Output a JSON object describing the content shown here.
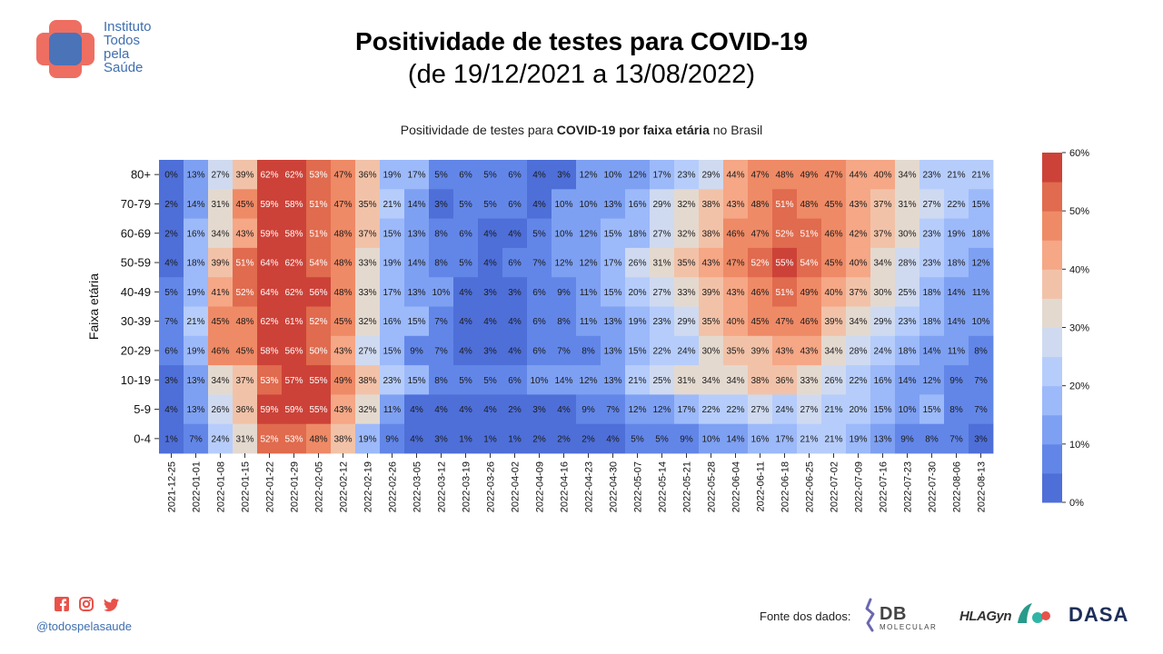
{
  "header": {
    "brand_lines": [
      "Instituto",
      "Todos",
      "pela",
      "Saúde"
    ],
    "title": "Positividade de testes para COVID-19",
    "subtitle": "(de 19/12/2021 a 13/08/2022)"
  },
  "chart_data": {
    "type": "heatmap",
    "title_parts": [
      {
        "text": "Positividade de testes para ",
        "bold": false
      },
      {
        "text": "COVID-19",
        "bold": true
      },
      {
        "text": " ",
        "bold": false
      },
      {
        "text": "por faixa etária",
        "bold": true
      },
      {
        "text": " no Brasil",
        "bold": false
      }
    ],
    "ylabel": "Faixa etária",
    "xlabel": "",
    "x": [
      "2021-12-25",
      "2022-01-01",
      "2022-01-08",
      "2022-01-15",
      "2022-01-22",
      "2022-01-29",
      "2022-02-05",
      "2022-02-12",
      "2022-02-19",
      "2022-02-26",
      "2022-03-05",
      "2022-03-12",
      "2022-03-19",
      "2022-03-26",
      "2022-04-02",
      "2022-04-09",
      "2022-04-16",
      "2022-04-23",
      "2022-04-30",
      "2022-05-07",
      "2022-05-14",
      "2022-05-21",
      "2022-05-28",
      "2022-06-04",
      "2022-06-11",
      "2022-06-18",
      "2022-06-25",
      "2022-07-02",
      "2022-07-09",
      "2022-07-16",
      "2022-07-23",
      "2022-07-30",
      "2022-08-06",
      "2022-08-13"
    ],
    "y": [
      "80+",
      "70-79",
      "60-69",
      "50-59",
      "40-49",
      "30-39",
      "20-29",
      "10-19",
      "5-9",
      "0-4"
    ],
    "values": [
      [
        0,
        13,
        27,
        39,
        62,
        62,
        53,
        47,
        36,
        19,
        17,
        5,
        6,
        5,
        6,
        4,
        3,
        12,
        10,
        12,
        17,
        23,
        29,
        44,
        47,
        48,
        49,
        47,
        44,
        40,
        34,
        23,
        21,
        21
      ],
      [
        2,
        14,
        31,
        45,
        59,
        58,
        51,
        47,
        35,
        21,
        14,
        3,
        5,
        5,
        6,
        4,
        10,
        10,
        13,
        16,
        29,
        32,
        38,
        43,
        48,
        51,
        48,
        45,
        43,
        37,
        31,
        27,
        22,
        15
      ],
      [
        2,
        16,
        34,
        43,
        59,
        58,
        51,
        48,
        37,
        15,
        13,
        8,
        6,
        4,
        4,
        5,
        10,
        12,
        15,
        18,
        27,
        32,
        38,
        46,
        47,
        52,
        51,
        46,
        42,
        37,
        30,
        23,
        19,
        18
      ],
      [
        4,
        18,
        39,
        51,
        64,
        62,
        54,
        48,
        33,
        19,
        14,
        8,
        5,
        4,
        6,
        7,
        12,
        12,
        17,
        26,
        31,
        35,
        43,
        47,
        52,
        55,
        54,
        45,
        40,
        34,
        28,
        23,
        18,
        12
      ],
      [
        5,
        19,
        41,
        52,
        64,
        62,
        56,
        48,
        33,
        17,
        13,
        10,
        4,
        3,
        3,
        6,
        9,
        11,
        15,
        20,
        27,
        33,
        39,
        43,
        46,
        51,
        49,
        40,
        37,
        30,
        25,
        18,
        14,
        11
      ],
      [
        7,
        21,
        45,
        48,
        62,
        61,
        52,
        45,
        32,
        16,
        15,
        7,
        4,
        4,
        4,
        6,
        8,
        11,
        13,
        19,
        23,
        29,
        35,
        40,
        45,
        47,
        46,
        39,
        34,
        29,
        23,
        18,
        14,
        10
      ],
      [
        6,
        19,
        46,
        45,
        58,
        56,
        50,
        43,
        27,
        15,
        9,
        7,
        4,
        3,
        4,
        6,
        7,
        8,
        13,
        15,
        22,
        24,
        30,
        35,
        39,
        43,
        43,
        34,
        28,
        24,
        18,
        14,
        11,
        8
      ],
      [
        3,
        13,
        34,
        37,
        53,
        57,
        55,
        49,
        38,
        23,
        15,
        8,
        5,
        5,
        6,
        10,
        14,
        12,
        13,
        21,
        25,
        31,
        34,
        34,
        38,
        36,
        33,
        26,
        22,
        16,
        14,
        12,
        9,
        7
      ],
      [
        4,
        13,
        26,
        36,
        59,
        59,
        55,
        43,
        32,
        11,
        4,
        4,
        4,
        4,
        2,
        3,
        4,
        9,
        7,
        12,
        12,
        17,
        22,
        22,
        27,
        24,
        27,
        21,
        20,
        15,
        10,
        15,
        8,
        7
      ],
      [
        1,
        7,
        24,
        31,
        52,
        53,
        48,
        38,
        19,
        9,
        4,
        3,
        1,
        1,
        1,
        2,
        2,
        2,
        4,
        5,
        5,
        9,
        10,
        14,
        16,
        17,
        21,
        21,
        19,
        13,
        9,
        8,
        7,
        3
      ]
    ],
    "value_suffix": "%",
    "colorbar": {
      "min": 0,
      "max": 60,
      "ticks": [
        "0%",
        "10%",
        "20%",
        "30%",
        "40%",
        "50%",
        "60%"
      ],
      "colors": [
        "#4e6fd8",
        "#6286e8",
        "#7ea0f2",
        "#9cb9fa",
        "#b6cdfb",
        "#cfdaf0",
        "#e4d9cf",
        "#f2c2a8",
        "#f5a786",
        "#ef8a66",
        "#e06b4e",
        "#cc4238"
      ]
    }
  },
  "footer": {
    "handle": "@todospelasaude",
    "fonte_label": "Fonte dos dados:",
    "sources": {
      "db": "DB",
      "db_sub": "MOLECULAR",
      "hlagyn": "HLAGyn",
      "dasa": "DASA"
    }
  },
  "colors": {
    "brand_blue": "#3f6fb0",
    "brand_red": "#e8524a",
    "social_red": "#e8524a"
  }
}
